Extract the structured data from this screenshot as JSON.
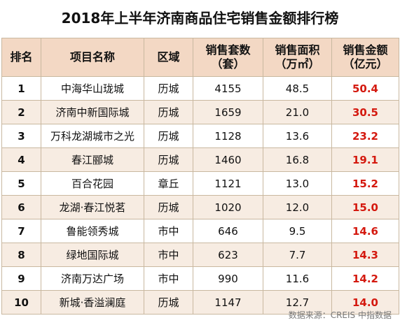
{
  "title": "2018年上半年济南商品住宅销售金额排行榜",
  "headers": {
    "rank": "排名",
    "project": "项目名称",
    "district": "区域",
    "units_line1": "销售套数",
    "units_line2": "（套）",
    "area_line1": "销售面积",
    "area_line2": "（万㎡）",
    "amount_line1": "销售金额",
    "amount_line2": "（亿元）"
  },
  "rows": [
    {
      "rank": "1",
      "project": "中海华山珑城",
      "district": "历城",
      "units": "4155",
      "area": "48.5",
      "amount": "50.4"
    },
    {
      "rank": "2",
      "project": "济南中新国际城",
      "district": "历城",
      "units": "1659",
      "area": "21.0",
      "amount": "30.5"
    },
    {
      "rank": "3",
      "project": "万科龙湖城市之光",
      "district": "历城",
      "units": "1128",
      "area": "13.6",
      "amount": "23.2"
    },
    {
      "rank": "4",
      "project": "春江郦城",
      "district": "历城",
      "units": "1460",
      "area": "16.8",
      "amount": "19.1"
    },
    {
      "rank": "5",
      "project": "百合花园",
      "district": "章丘",
      "units": "1121",
      "area": "13.0",
      "amount": "15.2"
    },
    {
      "rank": "6",
      "project": "龙湖·春江悦茗",
      "district": "历城",
      "units": "1020",
      "area": "12.0",
      "amount": "15.0"
    },
    {
      "rank": "7",
      "project": "鲁能领秀城",
      "district": "市中",
      "units": "646",
      "area": "9.5",
      "amount": "14.6"
    },
    {
      "rank": "8",
      "project": "绿地国际城",
      "district": "市中",
      "units": "623",
      "area": "7.7",
      "amount": "14.3"
    },
    {
      "rank": "9",
      "project": "济南万达广场",
      "district": "市中",
      "units": "990",
      "area": "11.6",
      "amount": "14.2"
    },
    {
      "rank": "10",
      "project": "新城·香溢澜庭",
      "district": "历城",
      "units": "1147",
      "area": "12.7",
      "amount": "14.0"
    }
  ],
  "source": "数据来源：CREIS 中指数据",
  "colors": {
    "header_bg": "#f3d8c4",
    "stripe_bg": "#f7ece2",
    "amount_text": "#d4190f"
  }
}
